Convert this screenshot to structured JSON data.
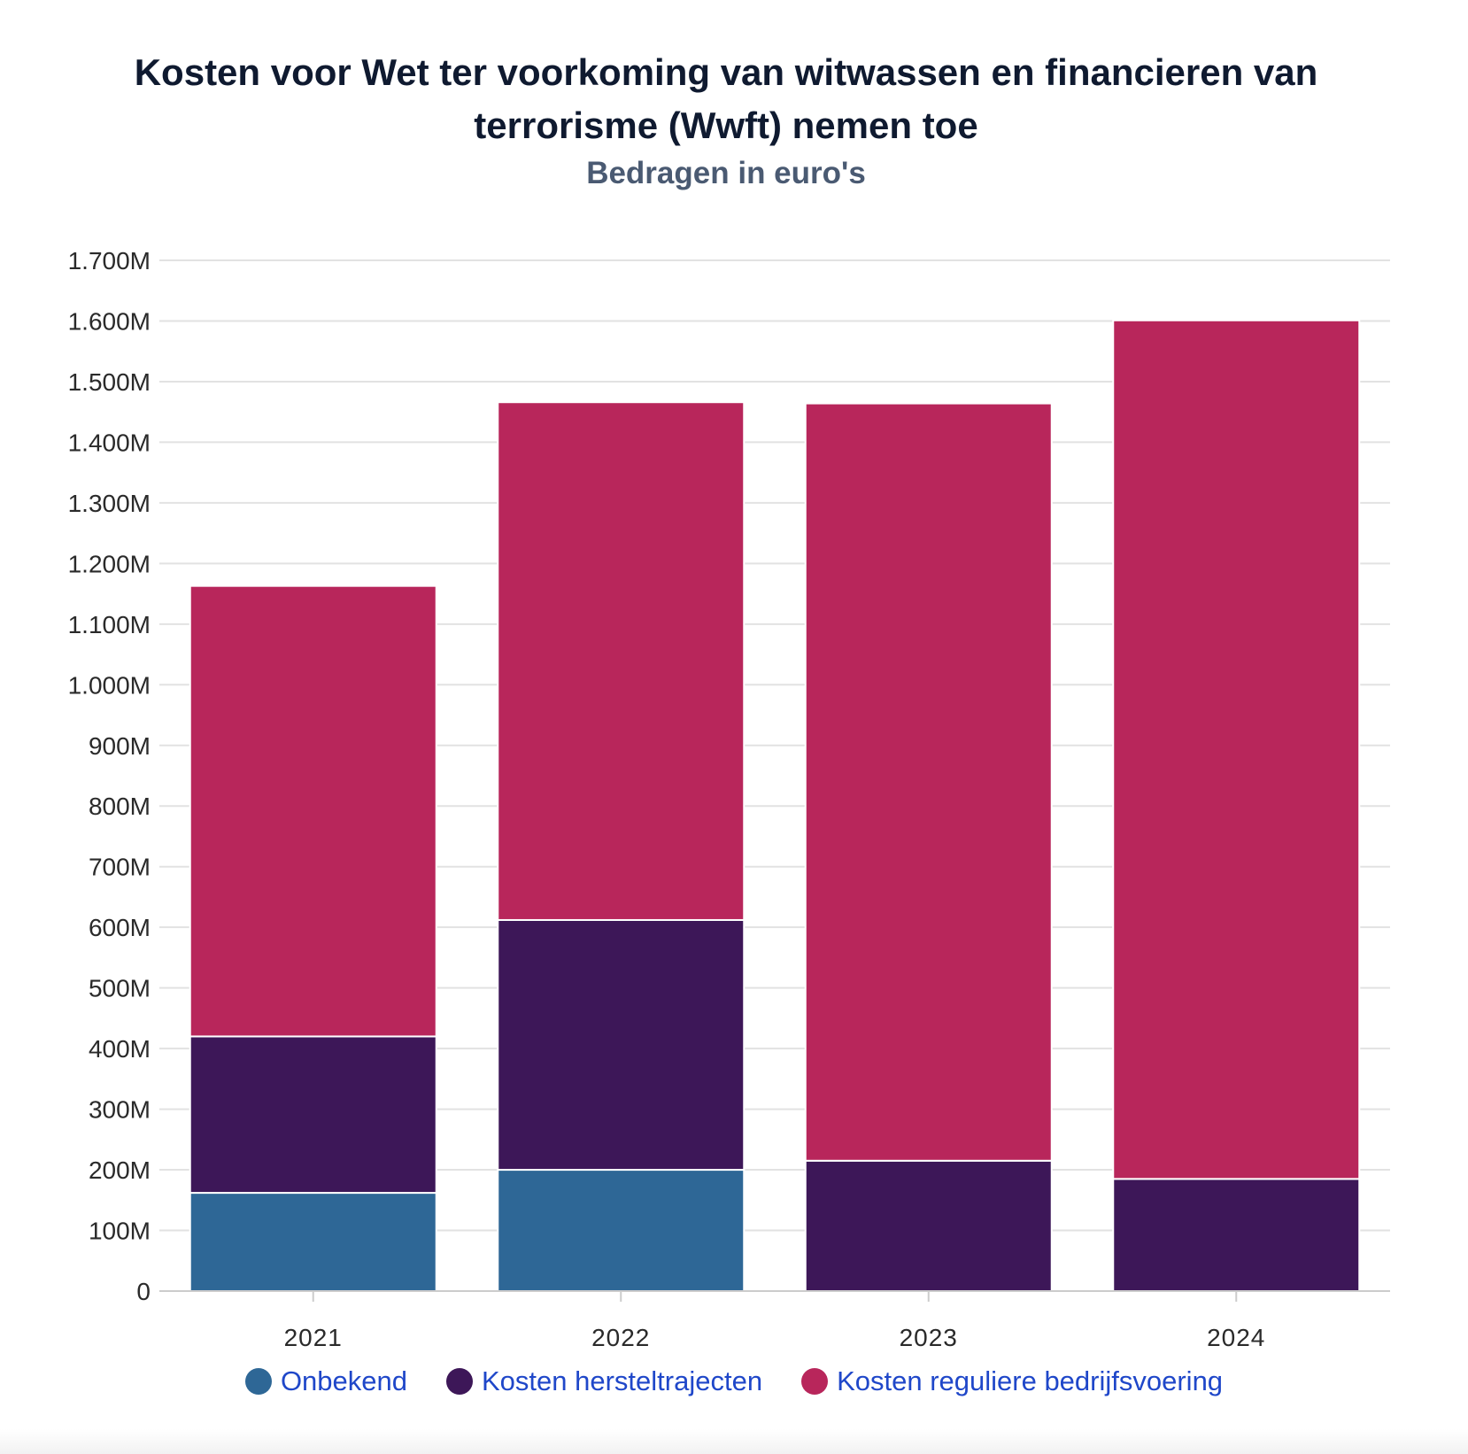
{
  "chart_data": {
    "type": "bar",
    "stacked": true,
    "title_line1": "Kosten voor Wet ter voorkoming van witwassen en financieren van",
    "title_line2": "terrorisme (Wwft) nemen toe",
    "subtitle": "Bedragen in euro's",
    "categories": [
      "2021",
      "2022",
      "2023",
      "2024"
    ],
    "series": [
      {
        "name": "Onbekend",
        "color": "#2e6796",
        "values": [
          162,
          200,
          0,
          0
        ]
      },
      {
        "name": "Kosten hersteltrajecten",
        "color": "#3d1758",
        "values": [
          258,
          412,
          215,
          185
        ]
      },
      {
        "name": "Kosten reguliere bedrijfsvoering",
        "color": "#b8265b",
        "values": [
          743,
          854,
          1249,
          1416
        ]
      }
    ],
    "ylim": [
      0,
      1700
    ],
    "y_ticks": [
      {
        "value": 0,
        "label": "0"
      },
      {
        "value": 100,
        "label": "100M"
      },
      {
        "value": 200,
        "label": "200M"
      },
      {
        "value": 300,
        "label": "300M"
      },
      {
        "value": 400,
        "label": "400M"
      },
      {
        "value": 500,
        "label": "500M"
      },
      {
        "value": 600,
        "label": "600M"
      },
      {
        "value": 700,
        "label": "700M"
      },
      {
        "value": 800,
        "label": "800M"
      },
      {
        "value": 900,
        "label": "900M"
      },
      {
        "value": 1000,
        "label": "1.000M"
      },
      {
        "value": 1100,
        "label": "1.100M"
      },
      {
        "value": 1200,
        "label": "1.200M"
      },
      {
        "value": 1300,
        "label": "1.300M"
      },
      {
        "value": 1400,
        "label": "1.400M"
      },
      {
        "value": 1500,
        "label": "1.500M"
      },
      {
        "value": 1600,
        "label": "1.600M"
      },
      {
        "value": 1700,
        "label": "1.700M"
      }
    ],
    "legend_position": "bottom-center",
    "grid": true
  }
}
